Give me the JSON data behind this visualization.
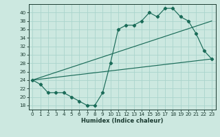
{
  "xlabel": "Humidex (Indice chaleur)",
  "ylabel": "",
  "bg_color": "#cce8e0",
  "line_color": "#1a6b58",
  "marker": "D",
  "marker_size": 2.2,
  "xlim": [
    -0.5,
    23.5
  ],
  "ylim": [
    17,
    42
  ],
  "xticks": [
    0,
    1,
    2,
    3,
    4,
    5,
    6,
    7,
    8,
    9,
    10,
    11,
    12,
    13,
    14,
    15,
    16,
    17,
    18,
    19,
    20,
    21,
    22,
    23
  ],
  "yticks": [
    18,
    20,
    22,
    24,
    26,
    28,
    30,
    32,
    34,
    36,
    38,
    40
  ],
  "line1_x": [
    0,
    1,
    2,
    3,
    4,
    5,
    6,
    7,
    8,
    9,
    10,
    11,
    12,
    13,
    14,
    15,
    16,
    17,
    18,
    19,
    20,
    21,
    22,
    23
  ],
  "line1_y": [
    24,
    23,
    21,
    21,
    21,
    20,
    19,
    18,
    18,
    21,
    28,
    36,
    37,
    37,
    38,
    40,
    39,
    41,
    41,
    39,
    38,
    35,
    31,
    29
  ],
  "line2_x": [
    0,
    23
  ],
  "line2_y": [
    24,
    29
  ],
  "line3_x": [
    0,
    23
  ],
  "line3_y": [
    24,
    38
  ],
  "grid_color": "#aad4cc",
  "font_color": "#1a3a30",
  "xlabel_fontsize": 6.0,
  "tick_fontsize": 5.2,
  "linewidth": 0.85
}
